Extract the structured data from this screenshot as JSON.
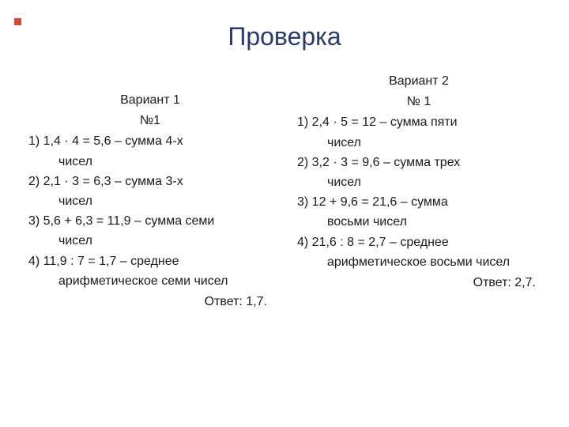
{
  "title": "Проверка",
  "accent_color": "#d44a3a",
  "title_color": "#2a3a6a",
  "text_color": "#1a1a1a",
  "columns": {
    "left": {
      "variant_label": "Вариант 1",
      "problem_label": "№1",
      "steps": [
        {
          "main": "1) 1,4 · 4 = 5,6 – сумма 4-х",
          "cont": "чисел"
        },
        {
          "main": "2) 2,1 · 3 = 6,3 – сумма 3-х",
          "cont": "чисел"
        },
        {
          "main": "3) 5,6 + 6,3 = 11,9 – сумма семи",
          "cont": "чисел"
        },
        {
          "main": "4) 11,9 : 7 = 1,7 – среднее",
          "cont": "арифметическое семи чисел"
        }
      ],
      "answer": "Ответ: 1,7."
    },
    "right": {
      "variant_label": "Вариант 2",
      "problem_label": "№ 1",
      "steps": [
        {
          "main": "1) 2,4 · 5 = 12 – сумма пяти",
          "cont": "чисел"
        },
        {
          "main": "2) 3,2 · 3 = 9,6 – сумма трех",
          "cont": "чисел"
        },
        {
          "main": "3) 12 + 9,6 = 21,6 – сумма",
          "cont": "восьми чисел"
        },
        {
          "main": "4) 21,6 : 8 = 2,7 – среднее",
          "cont": "арифметическое восьми чисел"
        }
      ],
      "answer": "Ответ: 2,7."
    }
  }
}
